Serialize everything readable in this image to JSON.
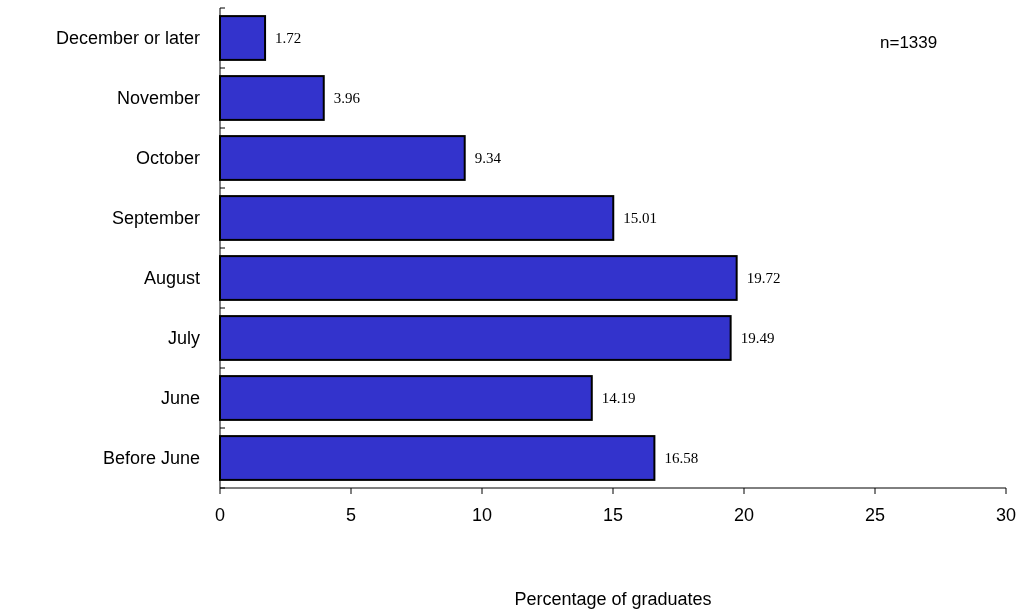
{
  "chart_data": {
    "type": "bar",
    "orientation": "horizontal",
    "xlabel": "Percentage of graduates",
    "categories": [
      "December or later",
      "November",
      "October",
      "September",
      "August",
      "July",
      "June",
      "Before June"
    ],
    "values": [
      1.72,
      3.96,
      9.34,
      15.01,
      19.72,
      19.49,
      14.19,
      16.58
    ],
    "color": "#3333cc",
    "xlim": [
      0,
      30
    ],
    "xticks": [
      0,
      5,
      10,
      15,
      20,
      25,
      30
    ],
    "data_labels": true,
    "annotations": [
      "n=1339"
    ]
  }
}
